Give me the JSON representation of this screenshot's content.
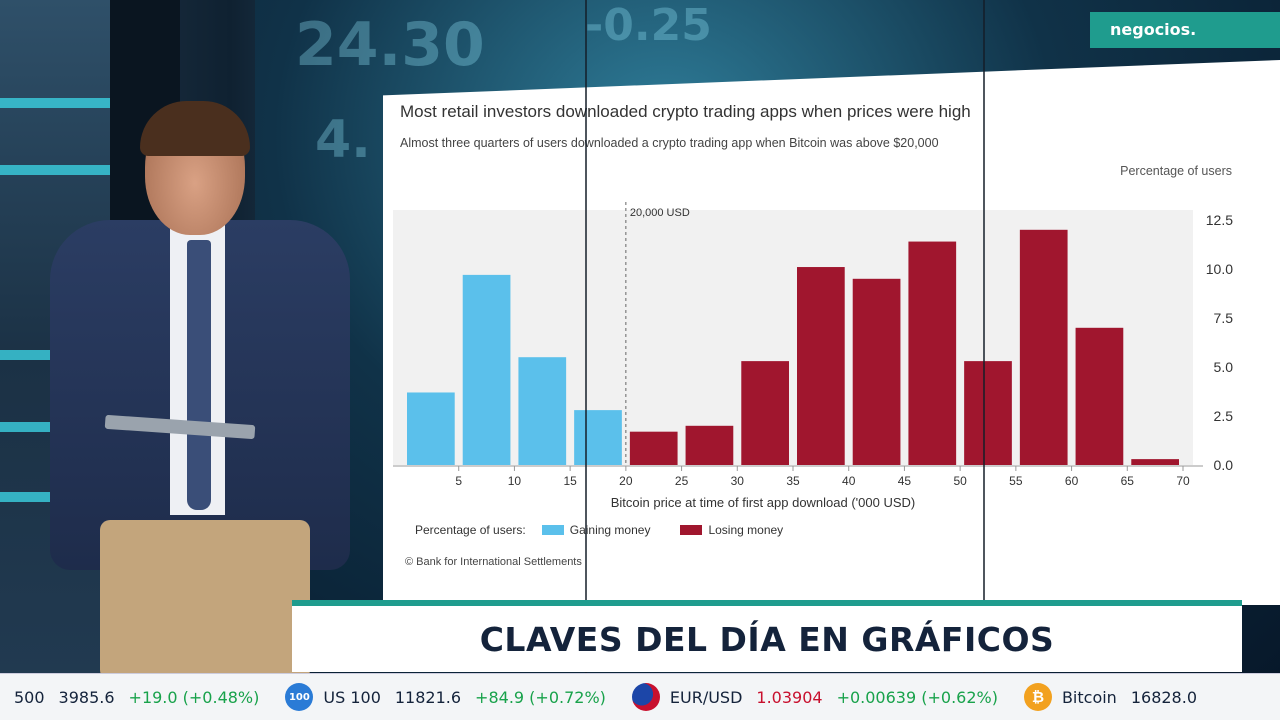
{
  "brand": "negocios.",
  "headline": "CLAVES DEL DÍA EN GRÁFICOS",
  "colors": {
    "gaining": "#5bc0eb",
    "losing": "#a0162e",
    "brand": "#1f9c8e",
    "up": "#18a24b"
  },
  "background_numbers": [
    "24.30",
    "-0.25",
    "4."
  ],
  "chart_data": {
    "type": "bar",
    "title": "Most retail investors downloaded crypto trading apps when prices were high",
    "subtitle": "Almost three quarters of users downloaded a crypto trading app when Bitcoin was above $20,000",
    "ylabel": "Percentage of users",
    "xlabel": "Bitcoin price at time of first app download ('000 USD)",
    "annotation": "20,000 USD",
    "ylim": [
      0,
      12.5
    ],
    "yticks": [
      "0.0",
      "2.5",
      "5.0",
      "7.5",
      "10.0",
      "12.5"
    ],
    "xticks": [
      "5",
      "10",
      "15",
      "20",
      "25",
      "30",
      "35",
      "40",
      "45",
      "50",
      "55",
      "60",
      "65",
      "70"
    ],
    "x_range": [
      0,
      70
    ],
    "legend_title": "Percentage of users:",
    "series": [
      {
        "name": "Gaining money",
        "color": "#5bc0eb",
        "bins": [
          [
            0,
            5
          ],
          [
            5,
            10
          ],
          [
            10,
            15
          ],
          [
            15,
            20
          ]
        ],
        "values": [
          3.7,
          9.7,
          5.5,
          2.8
        ]
      },
      {
        "name": "Losing money",
        "color": "#a0162e",
        "bins": [
          [
            20,
            25
          ],
          [
            25,
            30
          ],
          [
            30,
            35
          ],
          [
            35,
            40
          ],
          [
            40,
            45
          ],
          [
            45,
            50
          ],
          [
            50,
            55
          ],
          [
            55,
            60
          ],
          [
            60,
            65
          ],
          [
            65,
            70
          ]
        ],
        "values": [
          1.7,
          2.0,
          5.3,
          10.1,
          9.5,
          11.4,
          5.3,
          12.0,
          7.0,
          0.3
        ]
      }
    ],
    "source": "© Bank for International Settlements"
  },
  "ticker": [
    {
      "icon": "",
      "name": "500",
      "value": "3985.6",
      "change": "+19.0 (+0.48%)"
    },
    {
      "icon": "100",
      "name": "US 100",
      "value": "11821.6",
      "change": "+84.9 (+0.72%)"
    },
    {
      "icon": "",
      "name": "EUR/USD",
      "value": "1.03904",
      "change": "+0.00639 (+0.62%)"
    },
    {
      "icon": "₿",
      "name": "Bitcoin",
      "value": "16828.0",
      "change": ""
    }
  ]
}
